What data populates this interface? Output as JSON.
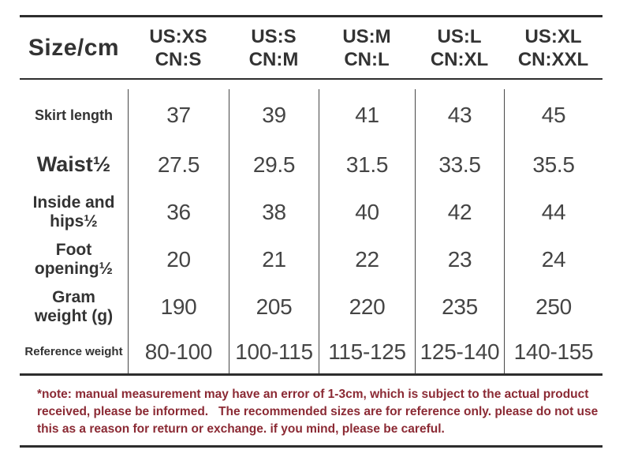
{
  "table": {
    "corner_label": "Size/cm",
    "columns": [
      {
        "us": "US:XS",
        "cn": "CN:S"
      },
      {
        "us": "US:S",
        "cn": "CN:M"
      },
      {
        "us": "US:M",
        "cn": "CN:L"
      },
      {
        "us": "US:L",
        "cn": "CN:XL"
      },
      {
        "us": "US:XL",
        "cn": "CN:XXL"
      }
    ],
    "rows": [
      {
        "label": "Skirt length",
        "values": [
          "37",
          "39",
          "41",
          "43",
          "45"
        ]
      },
      {
        "label": "Waist½",
        "values": [
          "27.5",
          "29.5",
          "31.5",
          "33.5",
          "35.5"
        ]
      },
      {
        "label": "Inside and\nhips½",
        "values": [
          "36",
          "38",
          "40",
          "42",
          "44"
        ]
      },
      {
        "label": "Foot\nopening½",
        "values": [
          "20",
          "21",
          "22",
          "23",
          "24"
        ]
      },
      {
        "label": "Gram\nweight (g)",
        "values": [
          "190",
          "205",
          "220",
          "235",
          "250"
        ]
      },
      {
        "label": "Reference weight",
        "values": [
          "80-100",
          "100-115",
          "115-125",
          "125-140",
          "140-155"
        ]
      }
    ]
  },
  "note": {
    "text": "*note: manual measurement may have an error of 1-3cm, which is subject to the actual product received, please be informed.   The recommended sizes are for reference only. please do not use this as a reason for return or exchange. if you mind, please be careful."
  },
  "colors": {
    "text": "#333333",
    "value": "#454545",
    "line": "#2d2d2d",
    "note": "#8b2a34",
    "background": "#ffffff"
  },
  "chart_data": {
    "type": "table",
    "title": "Size/cm",
    "columns": [
      "US:XS CN:S",
      "US:S CN:M",
      "US:M CN:L",
      "US:L CN:XL",
      "US:XL CN:XXL"
    ],
    "rows": [
      {
        "label": "Skirt length",
        "values": [
          37,
          39,
          41,
          43,
          45
        ]
      },
      {
        "label": "Waist½",
        "values": [
          27.5,
          29.5,
          31.5,
          33.5,
          35.5
        ]
      },
      {
        "label": "Inside and hips½",
        "values": [
          36,
          38,
          40,
          42,
          44
        ]
      },
      {
        "label": "Foot opening½",
        "values": [
          20,
          21,
          22,
          23,
          24
        ]
      },
      {
        "label": "Gram weight (g)",
        "values": [
          190,
          205,
          220,
          235,
          250
        ]
      },
      {
        "label": "Reference weight",
        "values": [
          "80-100",
          "100-115",
          "115-125",
          "125-140",
          "140-155"
        ]
      }
    ],
    "footnote": "*note: manual measurement may have an error of 1-3cm, which is subject to the actual product received, please be informed. The recommended sizes are for reference only. please do not use this as a reason for return or exchange. if you mind, please be careful."
  }
}
